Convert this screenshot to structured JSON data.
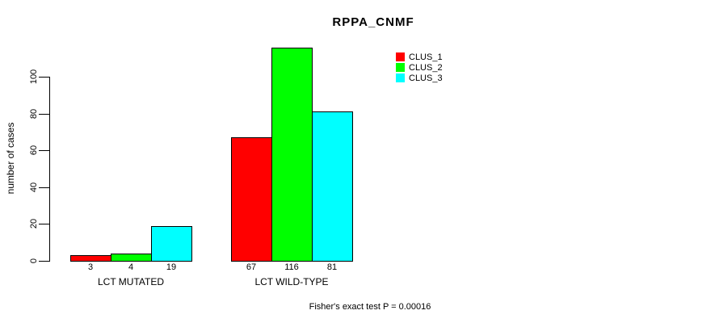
{
  "chart_data": {
    "type": "bar",
    "title": "RPPA_CNMF",
    "ylabel": "number of cases",
    "xlabel": "",
    "categories": [
      "LCT MUTATED",
      "LCT WILD-TYPE"
    ],
    "series": [
      {
        "name": "CLUS_1",
        "color": "#ff0000",
        "values": [
          3,
          67
        ]
      },
      {
        "name": "CLUS_2",
        "color": "#00ff00",
        "values": [
          4,
          116
        ]
      },
      {
        "name": "CLUS_3",
        "color": "#00ffff",
        "values": [
          19,
          81
        ]
      }
    ],
    "yticks": [
      0,
      20,
      40,
      60,
      80,
      100
    ],
    "ylim": [
      0,
      116
    ],
    "grid": false,
    "legend_position": "top-right",
    "bar_value_labels_shown": true,
    "footer": "Fisher's exact test P = 0.00016",
    "colors": {
      "background": "#ffffff",
      "axis": "#000000",
      "text": "#000000"
    }
  }
}
